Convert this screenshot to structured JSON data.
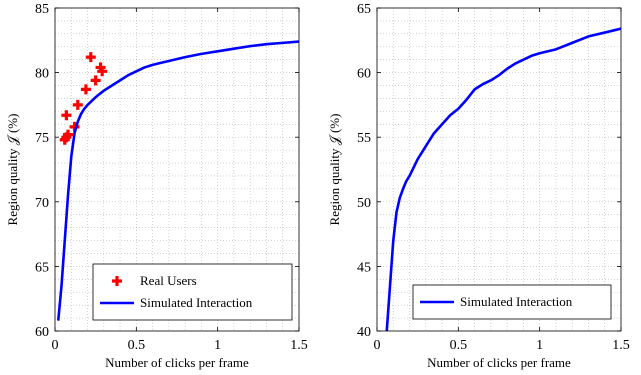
{
  "chart_data": [
    {
      "type": "line",
      "xlabel": "Number of clicks per frame",
      "ylabel": "Region quality 𝒥 (%)",
      "xlim": [
        0,
        1.5
      ],
      "ylim": [
        60,
        85
      ],
      "xticks": [
        0,
        0.5,
        1,
        1.5
      ],
      "xtick_labels": [
        "0",
        "0.5",
        "1",
        "1.5"
      ],
      "yticks": [
        60,
        65,
        70,
        75,
        80,
        85
      ],
      "ytick_labels": [
        "60",
        "65",
        "70",
        "75",
        "80",
        "85"
      ],
      "minor_grid_x_step": 0.1,
      "minor_grid_y_step": 1,
      "grid": true,
      "legend_position": "bottom-right",
      "series": [
        {
          "name": "Real Users",
          "kind": "scatter",
          "marker": "plus",
          "color": "#ff0000",
          "x": [
            0.06,
            0.07,
            0.08,
            0.07,
            0.12,
            0.14,
            0.19,
            0.22,
            0.25,
            0.28,
            0.29
          ],
          "y": [
            74.8,
            76.7,
            75.2,
            75.0,
            75.8,
            77.5,
            78.7,
            81.2,
            79.4,
            80.4,
            80.1
          ]
        },
        {
          "name": "Simulated Interaction",
          "kind": "line",
          "color": "#0000ff",
          "x": [
            0.02,
            0.04,
            0.06,
            0.08,
            0.1,
            0.12,
            0.14,
            0.16,
            0.18,
            0.2,
            0.25,
            0.3,
            0.35,
            0.4,
            0.45,
            0.5,
            0.55,
            0.6,
            0.65,
            0.7,
            0.8,
            0.9,
            1.0,
            1.1,
            1.2,
            1.3,
            1.4,
            1.5
          ],
          "y": [
            60.8,
            63.5,
            67.0,
            70.5,
            73.5,
            75.3,
            76.2,
            76.8,
            77.2,
            77.5,
            78.1,
            78.6,
            79.0,
            79.4,
            79.8,
            80.1,
            80.4,
            80.6,
            80.75,
            80.9,
            81.2,
            81.45,
            81.65,
            81.85,
            82.05,
            82.2,
            82.3,
            82.4
          ]
        }
      ]
    },
    {
      "type": "line",
      "xlabel": "Number of clicks per frame",
      "ylabel": "Region quality 𝒥 (%)",
      "xlim": [
        0,
        1.5
      ],
      "ylim": [
        40,
        65
      ],
      "xticks": [
        0,
        0.5,
        1,
        1.5
      ],
      "xtick_labels": [
        "0",
        "0.5",
        "1",
        "1.5"
      ],
      "yticks": [
        40,
        45,
        50,
        55,
        60,
        65
      ],
      "ytick_labels": [
        "40",
        "45",
        "50",
        "55",
        "60",
        "65"
      ],
      "minor_grid_x_step": 0.1,
      "minor_grid_y_step": 1,
      "grid": true,
      "legend_position": "bottom-right",
      "series": [
        {
          "name": "Simulated Interaction",
          "kind": "line",
          "color": "#0000ff",
          "x": [
            0.06,
            0.08,
            0.1,
            0.12,
            0.14,
            0.16,
            0.18,
            0.2,
            0.25,
            0.3,
            0.35,
            0.4,
            0.45,
            0.5,
            0.55,
            0.6,
            0.65,
            0.7,
            0.75,
            0.8,
            0.85,
            0.9,
            0.95,
            1.0,
            1.1,
            1.2,
            1.3,
            1.4,
            1.5
          ],
          "y": [
            40.0,
            43.5,
            47.0,
            49.2,
            50.3,
            51.0,
            51.6,
            52.0,
            53.3,
            54.3,
            55.3,
            56.0,
            56.7,
            57.2,
            57.9,
            58.7,
            59.1,
            59.4,
            59.8,
            60.3,
            60.7,
            61.0,
            61.3,
            61.5,
            61.8,
            62.3,
            62.8,
            63.1,
            63.4
          ]
        }
      ]
    }
  ]
}
